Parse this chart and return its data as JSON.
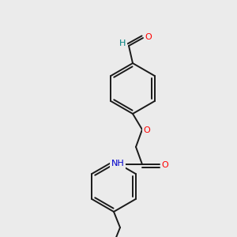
{
  "background_color": "#ebebeb",
  "bond_color": "#1a1a1a",
  "atom_colors": {
    "O": "#ff0000",
    "N": "#0000cc",
    "H_aldehyde": "#008080",
    "C": "#1a1a1a"
  },
  "font_size": 8,
  "fig_size": [
    3.0,
    3.0
  ],
  "dpi": 100
}
